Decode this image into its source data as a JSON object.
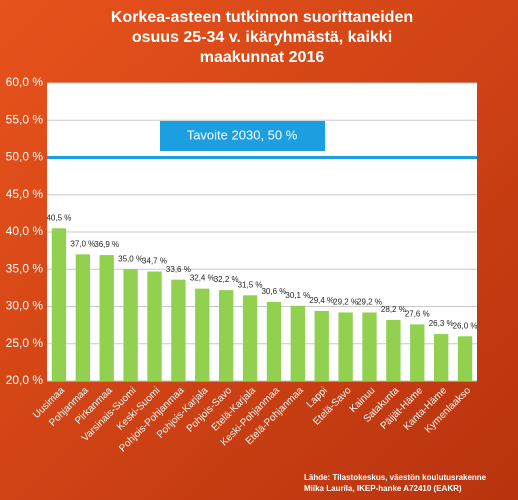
{
  "chart_data": {
    "type": "bar",
    "title": [
      "Korkea-asteen tutkinnon suorittaneiden",
      "osuus 25-34 v. ikäryhmästä, kaikki",
      "maakunnat 2016"
    ],
    "categories": [
      "Uusimaa",
      "Pohjanmaa",
      "Pirkanmaa",
      "Varsinais-Suomi",
      "Keski-Suomi",
      "Pohjois-Pohjanmaa",
      "Pohjois-Karjala",
      "Pohjois-Savo",
      "Etelä-Karjala",
      "Keski-Pohjanmaa",
      "Etelä-Pohjanmaa",
      "Lappi",
      "Etelä-Savo",
      "Kainuu",
      "Satakunta",
      "Päijät-Häme",
      "Kanta-Häme",
      "Kymenlaakso"
    ],
    "values": [
      40.5,
      37.0,
      36.9,
      35.0,
      34.7,
      33.6,
      32.4,
      32.2,
      31.5,
      30.6,
      30.1,
      29.4,
      29.2,
      29.2,
      28.2,
      27.6,
      26.3,
      26.0
    ],
    "value_labels": [
      "40,5 %",
      "37,0 %",
      "36,9 %",
      "35,0 %",
      "34,7 %",
      "33,6 %",
      "32,4 %",
      "32,2 %",
      "31,5 %",
      "30,6 %",
      "30,1 %",
      "29,4 %",
      "29,2 %",
      "29,2 %",
      "28,2 %",
      "27,6 %",
      "26,3 %",
      "26,0 %"
    ],
    "color": "#92d050",
    "ylim": [
      20,
      60
    ],
    "yticks": [
      {
        "value": 20,
        "label": "20,0 %"
      },
      {
        "value": 25,
        "label": "25,0 %"
      },
      {
        "value": 30,
        "label": "30,0 %"
      },
      {
        "value": 35,
        "label": "35,0 %"
      },
      {
        "value": 40,
        "label": "40,0 %"
      },
      {
        "value": 45,
        "label": "45,0 %"
      },
      {
        "value": 50,
        "label": "50,0 %"
      },
      {
        "value": 55,
        "label": "55,0 %"
      },
      {
        "value": 60,
        "label": "60,0 %"
      }
    ],
    "grid": true,
    "target": {
      "value": 50,
      "label": "Tavoite 2030, 50 %",
      "color": "#1c9fe0"
    },
    "source": [
      "Lähde: Tilastokeskus, väestön koulutusrakenne",
      "Miika Laurila, IKEP-hanke A72410 (EAKR)"
    ]
  }
}
